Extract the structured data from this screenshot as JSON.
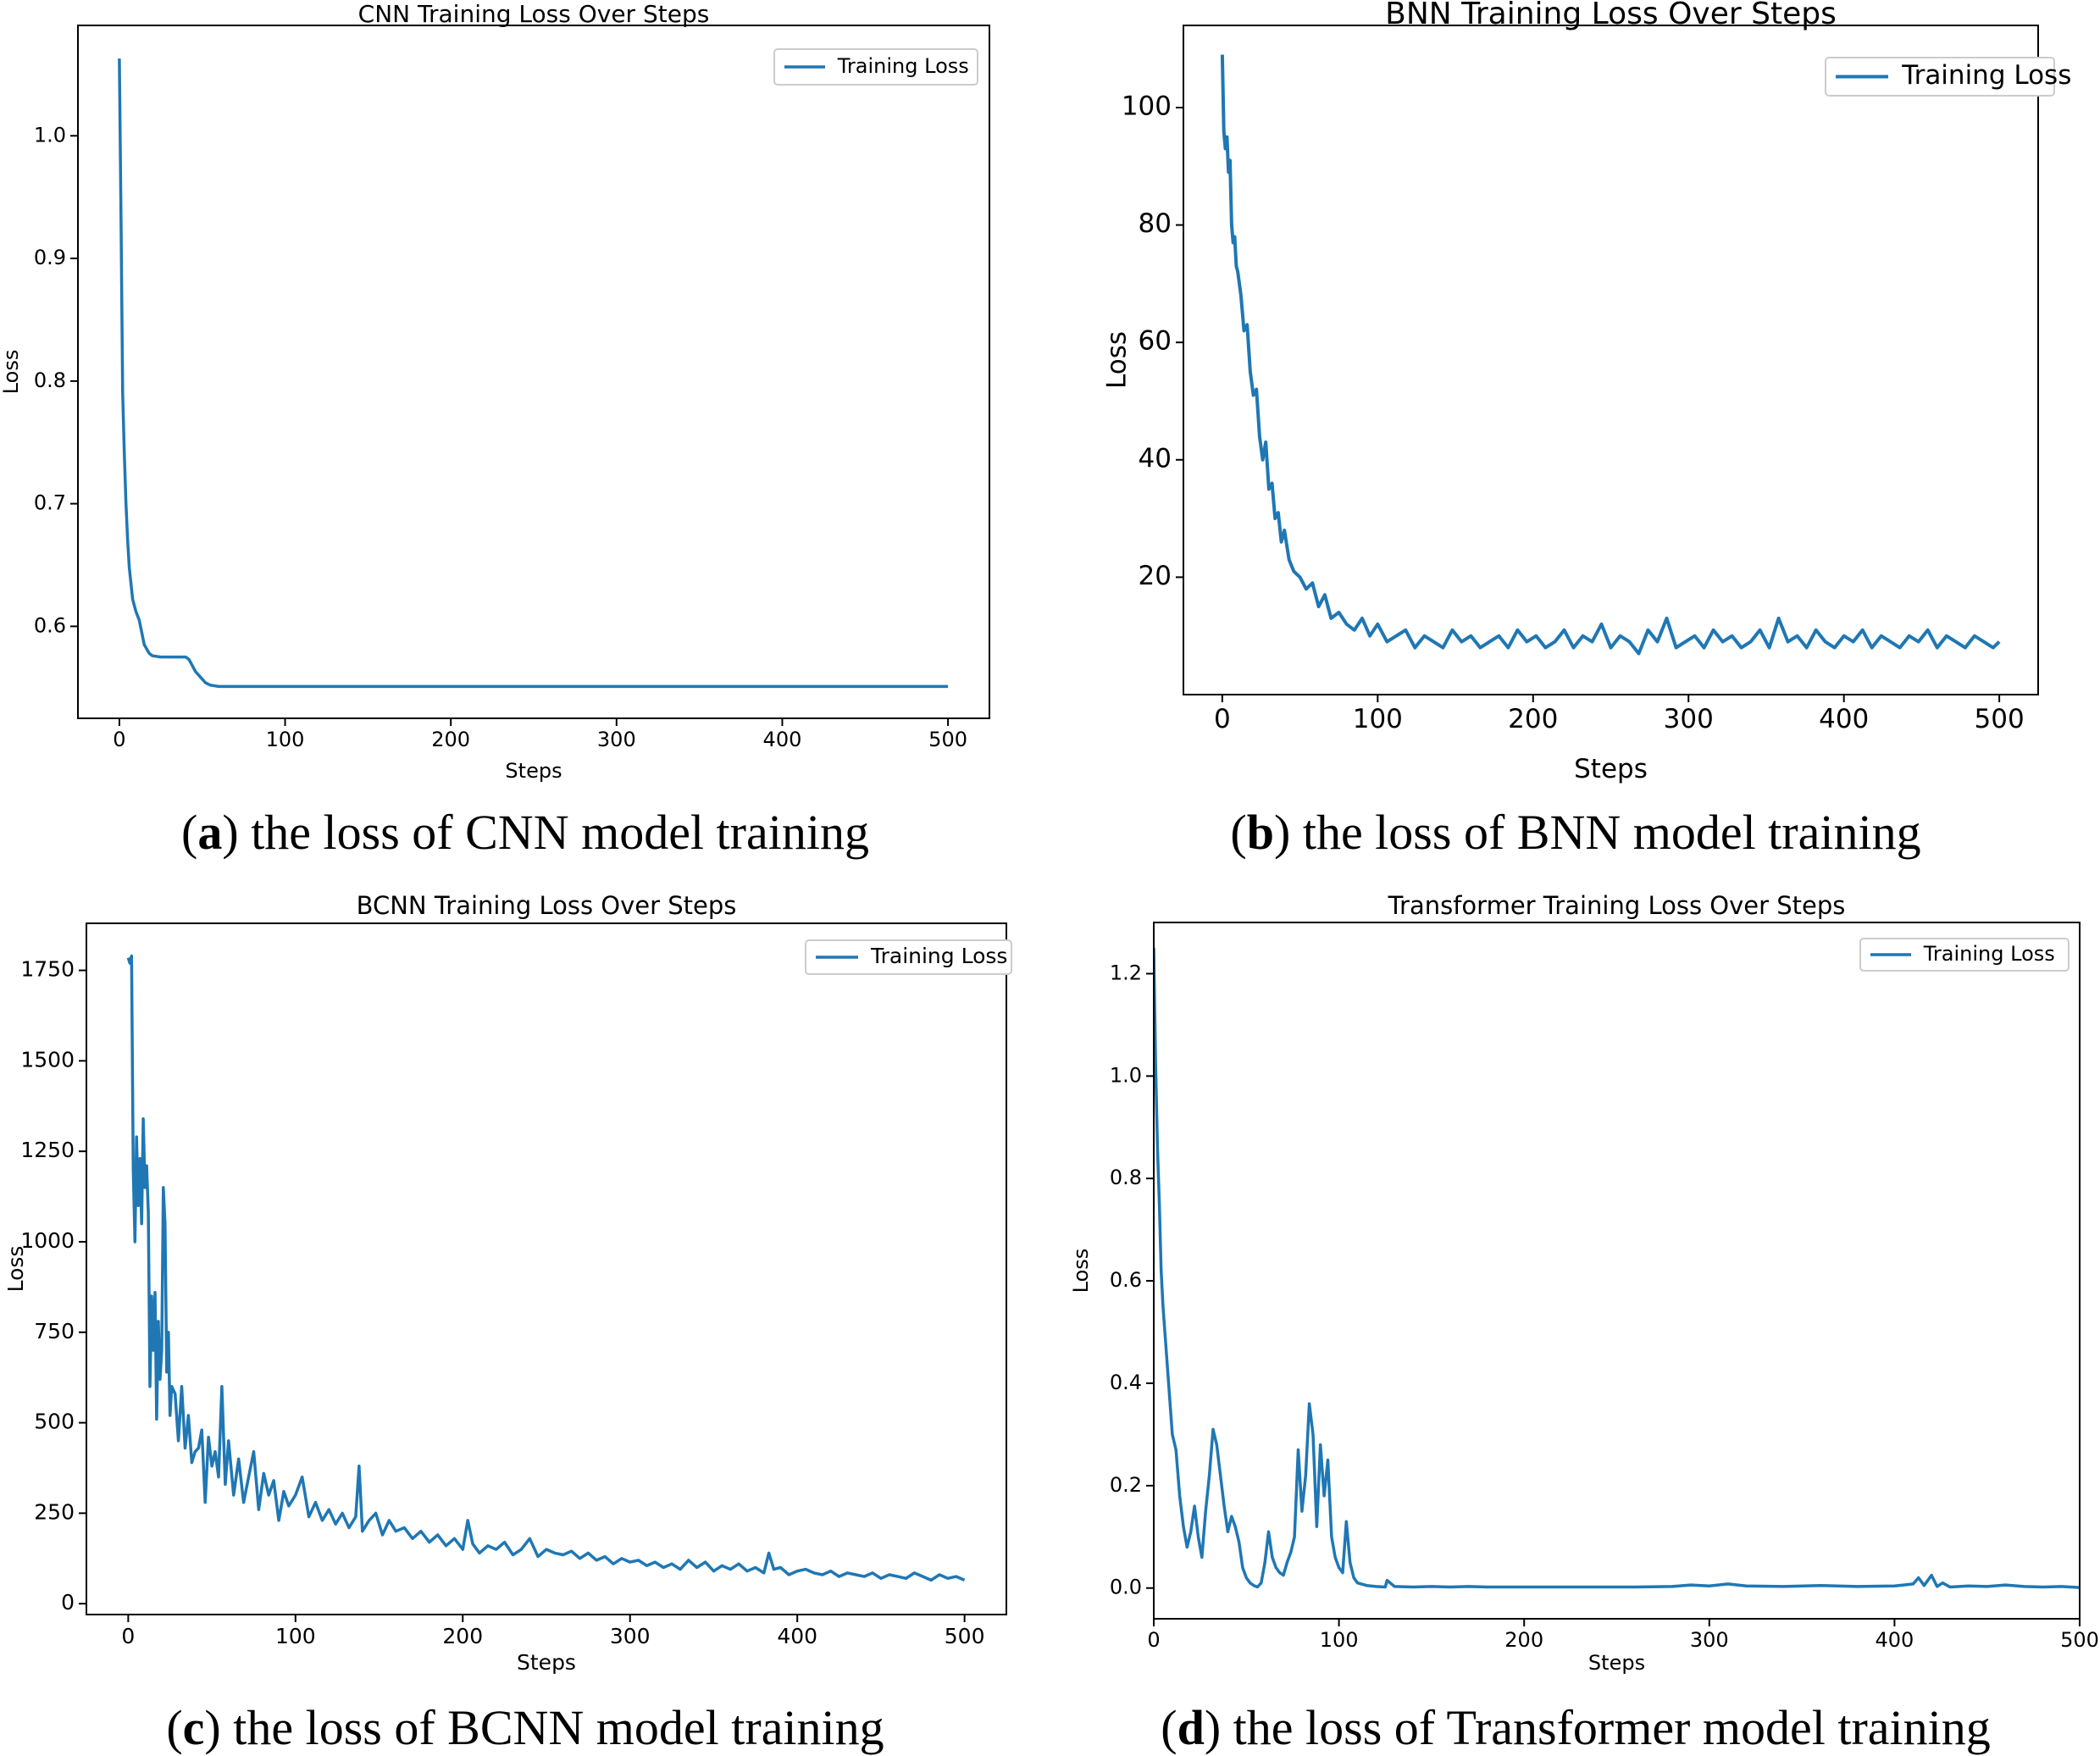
{
  "colors": {
    "series": "#1f77b4",
    "axis": "#000000",
    "legend_border": "#cccccc"
  },
  "captions": [
    {
      "label": "a",
      "text": " the loss of CNN model training"
    },
    {
      "label": "b",
      "text": " the loss of BNN model training"
    },
    {
      "label": "c",
      "text": " the loss of BCNN model training"
    },
    {
      "label": "d",
      "text": " the loss of Transformer model training"
    }
  ],
  "chart_data": [
    {
      "id": "a",
      "type": "line",
      "title": "CNN Training Loss Over Steps",
      "xlabel": "Steps",
      "ylabel": "Loss",
      "xlim": [
        -25,
        525
      ],
      "ylim": [
        0.525,
        1.09
      ],
      "xticks": [
        0,
        100,
        200,
        300,
        400,
        500
      ],
      "xtick_labels": [
        "0",
        "100",
        "200",
        "300",
        "400",
        "500"
      ],
      "yticks": [
        0.6,
        0.7,
        0.8,
        0.9,
        1.0
      ],
      "ytick_labels": [
        "0.6",
        "0.7",
        "0.8",
        "0.9",
        "1.0"
      ],
      "legend": [
        "Training Loss"
      ],
      "legend_loc": "upper right",
      "series": [
        {
          "name": "Training Loss",
          "x": [
            0,
            1,
            2,
            3,
            4,
            5,
            6,
            7,
            8,
            10,
            12,
            15,
            18,
            20,
            25,
            30,
            35,
            40,
            42,
            44,
            46,
            48,
            50,
            52,
            55,
            60,
            80,
            100,
            150,
            200,
            250,
            300,
            350,
            400,
            450,
            500
          ],
          "y": [
            1.063,
            0.93,
            0.79,
            0.74,
            0.7,
            0.67,
            0.648,
            0.635,
            0.622,
            0.612,
            0.605,
            0.585,
            0.578,
            0.576,
            0.575,
            0.575,
            0.575,
            0.575,
            0.573,
            0.568,
            0.563,
            0.56,
            0.557,
            0.554,
            0.552,
            0.551,
            0.551,
            0.551,
            0.551,
            0.551,
            0.551,
            0.551,
            0.551,
            0.551,
            0.551,
            0.551
          ]
        }
      ]
    },
    {
      "id": "b",
      "type": "line",
      "title": "BNN Training Loss Over Steps",
      "xlabel": "Steps",
      "ylabel": "Loss",
      "xlim": [
        -25,
        525
      ],
      "ylim": [
        0,
        114
      ],
      "xticks": [
        0,
        100,
        200,
        300,
        400,
        500
      ],
      "xtick_labels": [
        "0",
        "100",
        "200",
        "300",
        "400",
        "500"
      ],
      "yticks": [
        20,
        40,
        60,
        80,
        100
      ],
      "ytick_labels": [
        "20",
        "40",
        "60",
        "80",
        "100"
      ],
      "legend": [
        "Training Loss"
      ],
      "legend_loc": "upper right",
      "series": [
        {
          "name": "Training Loss",
          "x": [
            0,
            1,
            2,
            3,
            4,
            5,
            6,
            7,
            8,
            9,
            10,
            12,
            14,
            16,
            18,
            20,
            22,
            24,
            26,
            28,
            30,
            32,
            34,
            36,
            38,
            40,
            43,
            46,
            50,
            54,
            58,
            62,
            66,
            70,
            75,
            80,
            85,
            90,
            95,
            100,
            106,
            112,
            118,
            124,
            130,
            136,
            142,
            148,
            154,
            160,
            166,
            172,
            178,
            184,
            190,
            196,
            202,
            208,
            214,
            220,
            226,
            232,
            238,
            244,
            250,
            256,
            262,
            268,
            274,
            280,
            286,
            292,
            298,
            304,
            310,
            316,
            322,
            328,
            334,
            340,
            346,
            352,
            358,
            364,
            370,
            376,
            382,
            388,
            394,
            400,
            406,
            412,
            418,
            424,
            430,
            436,
            442,
            448,
            454,
            460,
            466,
            472,
            478,
            484,
            490,
            496,
            500
          ],
          "y": [
            109,
            96,
            93,
            95,
            89,
            91,
            80,
            77,
            78,
            73,
            72,
            68,
            62,
            63,
            55,
            51,
            52,
            44,
            40,
            43,
            35,
            36,
            30,
            31,
            26,
            28,
            23,
            21,
            20,
            18,
            19,
            15,
            17,
            13,
            14,
            12,
            11,
            13,
            10,
            12,
            9,
            10,
            11,
            8,
            10,
            9,
            8,
            11,
            9,
            10,
            8,
            9,
            10,
            8,
            11,
            9,
            10,
            8,
            9,
            11,
            8,
            10,
            9,
            12,
            8,
            10,
            9,
            7,
            11,
            9,
            13,
            8,
            9,
            10,
            8,
            11,
            9,
            10,
            8,
            9,
            11,
            8,
            13,
            9,
            10,
            8,
            11,
            9,
            8,
            10,
            9,
            11,
            8,
            10,
            9,
            8,
            10,
            9,
            11,
            8,
            10,
            9,
            8,
            10,
            9,
            8,
            9
          ]
        }
      ]
    },
    {
      "id": "c",
      "type": "line",
      "title": "BCNN Training Loss Over Steps",
      "xlabel": "Steps",
      "ylabel": "Loss",
      "xlim": [
        -25,
        525
      ],
      "ylim": [
        -30,
        1880
      ],
      "xticks": [
        0,
        100,
        200,
        300,
        400,
        500
      ],
      "xtick_labels": [
        "0",
        "100",
        "200",
        "300",
        "400",
        "500"
      ],
      "yticks": [
        0,
        250,
        500,
        750,
        1000,
        1250,
        1500,
        1750
      ],
      "ytick_labels": [
        "0",
        "250",
        "500",
        "750",
        "1000",
        "1250",
        "1500",
        "1750"
      ],
      "legend": [
        "Training Loss"
      ],
      "legend_loc": "upper right",
      "series": [
        {
          "name": "Training Loss",
          "x": [
            0,
            1,
            2,
            3,
            4,
            5,
            6,
            7,
            8,
            9,
            10,
            11,
            12,
            13,
            14,
            15,
            16,
            17,
            18,
            19,
            20,
            21,
            22,
            23,
            24,
            25,
            26,
            28,
            30,
            32,
            34,
            36,
            38,
            40,
            42,
            44,
            46,
            48,
            50,
            52,
            54,
            56,
            58,
            60,
            63,
            66,
            69,
            72,
            75,
            78,
            81,
            84,
            87,
            90,
            93,
            96,
            100,
            104,
            108,
            112,
            116,
            120,
            124,
            128,
            132,
            136,
            138,
            140,
            144,
            148,
            152,
            156,
            160,
            165,
            170,
            175,
            180,
            185,
            190,
            195,
            200,
            203,
            206,
            210,
            215,
            220,
            225,
            230,
            235,
            240,
            245,
            250,
            255,
            260,
            265,
            270,
            275,
            280,
            285,
            290,
            295,
            300,
            305,
            310,
            315,
            320,
            325,
            330,
            335,
            340,
            345,
            350,
            355,
            360,
            365,
            370,
            375,
            380,
            383,
            386,
            390,
            395,
            400,
            405,
            410,
            415,
            420,
            425,
            430,
            435,
            440,
            445,
            450,
            455,
            460,
            465,
            470,
            475,
            480,
            485,
            490,
            495,
            500
          ],
          "y": [
            1785,
            1770,
            1790,
            1200,
            1000,
            1290,
            1100,
            1230,
            1050,
            1340,
            1150,
            1210,
            1080,
            600,
            850,
            700,
            860,
            510,
            780,
            620,
            700,
            1150,
            1050,
            640,
            750,
            520,
            600,
            580,
            450,
            600,
            430,
            520,
            390,
            420,
            430,
            480,
            280,
            460,
            380,
            420,
            350,
            600,
            330,
            450,
            300,
            400,
            280,
            350,
            420,
            260,
            360,
            300,
            340,
            230,
            310,
            270,
            300,
            350,
            240,
            280,
            230,
            260,
            220,
            250,
            210,
            240,
            380,
            200,
            230,
            250,
            190,
            230,
            200,
            210,
            180,
            200,
            170,
            190,
            160,
            180,
            150,
            230,
            165,
            140,
            160,
            150,
            170,
            135,
            150,
            180,
            130,
            150,
            140,
            135,
            145,
            125,
            140,
            120,
            130,
            110,
            125,
            115,
            120,
            105,
            115,
            100,
            110,
            95,
            120,
            100,
            115,
            90,
            105,
            95,
            110,
            90,
            100,
            85,
            140,
            95,
            100,
            80,
            90,
            95,
            85,
            80,
            90,
            75,
            85,
            80,
            75,
            85,
            70,
            80,
            75,
            70,
            85,
            75,
            65,
            80,
            70,
            75,
            65
          ]
        }
      ]
    },
    {
      "id": "d",
      "type": "line",
      "title": "Transformer Training Loss Over Steps",
      "xlabel": "Steps",
      "ylabel": "Loss",
      "xlim": [
        0,
        500
      ],
      "ylim": [
        -0.06,
        1.3
      ],
      "xticks": [
        0,
        100,
        200,
        300,
        400,
        500
      ],
      "xtick_labels": [
        "0",
        "100",
        "200",
        "300",
        "400",
        "500"
      ],
      "yticks": [
        0.0,
        0.2,
        0.4,
        0.6,
        0.8,
        1.0,
        1.2
      ],
      "ytick_labels": [
        "0.0",
        "0.2",
        "0.4",
        "0.6",
        "0.8",
        "1.0",
        "1.2"
      ],
      "legend": [
        "Training Loss"
      ],
      "legend_loc": "upper right",
      "series": [
        {
          "name": "Training Loss",
          "x": [
            0,
            1,
            2,
            3,
            4,
            5,
            6,
            8,
            10,
            12,
            14,
            16,
            18,
            20,
            22,
            24,
            26,
            28,
            30,
            32,
            34,
            36,
            38,
            40,
            42,
            44,
            46,
            48,
            50,
            52,
            54,
            56,
            58,
            60,
            62,
            64,
            66,
            68,
            70,
            72,
            74,
            76,
            78,
            80,
            82,
            84,
            86,
            88,
            90,
            92,
            94,
            96,
            98,
            100,
            102,
            104,
            106,
            108,
            110,
            115,
            120,
            125,
            126,
            130,
            140,
            150,
            160,
            170,
            180,
            200,
            220,
            240,
            260,
            280,
            290,
            300,
            310,
            320,
            340,
            360,
            380,
            400,
            405,
            410,
            413,
            416,
            420,
            423,
            426,
            430,
            440,
            450,
            460,
            470,
            480,
            490,
            500
          ],
          "y": [
            1.25,
            1.02,
            0.86,
            0.75,
            0.62,
            0.55,
            0.5,
            0.4,
            0.3,
            0.27,
            0.18,
            0.12,
            0.08,
            0.11,
            0.16,
            0.1,
            0.06,
            0.15,
            0.22,
            0.31,
            0.28,
            0.22,
            0.16,
            0.11,
            0.14,
            0.12,
            0.09,
            0.04,
            0.02,
            0.01,
            0.005,
            0.002,
            0.01,
            0.05,
            0.11,
            0.06,
            0.04,
            0.03,
            0.025,
            0.05,
            0.07,
            0.1,
            0.27,
            0.15,
            0.22,
            0.36,
            0.3,
            0.12,
            0.28,
            0.18,
            0.25,
            0.1,
            0.06,
            0.04,
            0.03,
            0.13,
            0.05,
            0.02,
            0.01,
            0.005,
            0.003,
            0.002,
            0.015,
            0.003,
            0.002,
            0.003,
            0.002,
            0.003,
            0.002,
            0.002,
            0.002,
            0.002,
            0.002,
            0.003,
            0.006,
            0.004,
            0.008,
            0.004,
            0.003,
            0.005,
            0.003,
            0.004,
            0.006,
            0.008,
            0.02,
            0.005,
            0.025,
            0.003,
            0.01,
            0.002,
            0.004,
            0.003,
            0.006,
            0.003,
            0.002,
            0.003,
            0.001
          ]
        }
      ]
    }
  ]
}
